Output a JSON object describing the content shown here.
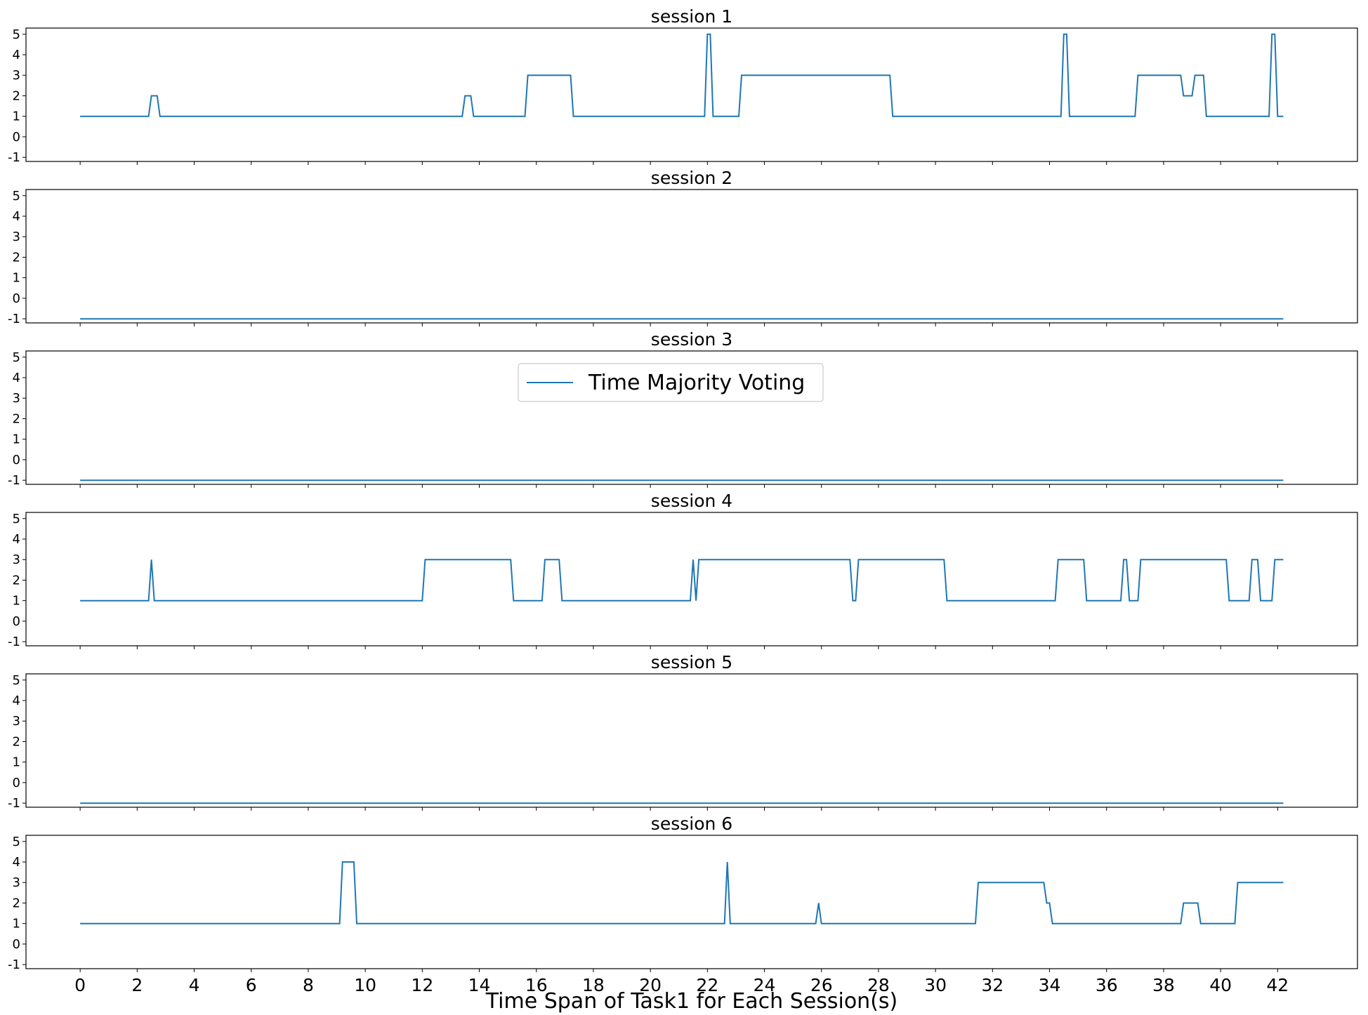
{
  "chart_data": {
    "type": "line",
    "xlabel": "Time Span of Task1 for Each Session(s)",
    "ylabel": "",
    "xlim": [
      -1.9,
      44.8
    ],
    "ylim": [
      -1.2,
      5.3
    ],
    "xticks": [
      "0",
      "2",
      "4",
      "6",
      "8",
      "10",
      "12",
      "14",
      "16",
      "18",
      "20",
      "22",
      "24",
      "26",
      "28",
      "30",
      "32",
      "34",
      "36",
      "38",
      "40",
      "42"
    ],
    "yticks": [
      "-1",
      "0",
      "1",
      "2",
      "3",
      "4",
      "5"
    ],
    "grid": false,
    "legend": {
      "entries": [
        "Time Majority Voting"
      ],
      "placement": "upper-center (in session 3 panel)"
    },
    "series_color": "#1f77b4",
    "panels": [
      {
        "title": "session 1",
        "series": [
          {
            "name": "Time Majority Voting",
            "points": [
              [
                0,
                1
              ],
              [
                2.4,
                1
              ],
              [
                2.5,
                2
              ],
              [
                2.7,
                2
              ],
              [
                2.8,
                1
              ],
              [
                13.4,
                1
              ],
              [
                13.5,
                2
              ],
              [
                13.7,
                2
              ],
              [
                13.8,
                1
              ],
              [
                15.6,
                1
              ],
              [
                15.7,
                3
              ],
              [
                17.2,
                3
              ],
              [
                17.3,
                1
              ],
              [
                21.9,
                1
              ],
              [
                22.0,
                5
              ],
              [
                22.1,
                5
              ],
              [
                22.2,
                1
              ],
              [
                23.1,
                1
              ],
              [
                23.2,
                3
              ],
              [
                28.4,
                3
              ],
              [
                28.5,
                1
              ],
              [
                34.4,
                1
              ],
              [
                34.5,
                5
              ],
              [
                34.6,
                5
              ],
              [
                34.7,
                1
              ],
              [
                37.0,
                1
              ],
              [
                37.1,
                3
              ],
              [
                38.6,
                3
              ],
              [
                38.7,
                2
              ],
              [
                39.0,
                2
              ],
              [
                39.1,
                3
              ],
              [
                39.4,
                3
              ],
              [
                39.5,
                1
              ],
              [
                41.7,
                1
              ],
              [
                41.8,
                5
              ],
              [
                41.9,
                5
              ],
              [
                42.0,
                1
              ],
              [
                42.2,
                1
              ]
            ]
          }
        ]
      },
      {
        "title": "session 2",
        "series": [
          {
            "name": "Time Majority Voting",
            "points": [
              [
                0,
                -1
              ],
              [
                42.2,
                -1
              ]
            ]
          }
        ]
      },
      {
        "title": "session 3",
        "series": [
          {
            "name": "Time Majority Voting",
            "points": [
              [
                0,
                -1
              ],
              [
                42.2,
                -1
              ]
            ]
          }
        ]
      },
      {
        "title": "session 4",
        "series": [
          {
            "name": "Time Majority Voting",
            "points": [
              [
                0,
                1
              ],
              [
                2.4,
                1
              ],
              [
                2.5,
                3
              ],
              [
                2.6,
                1
              ],
              [
                12.0,
                1
              ],
              [
                12.1,
                3
              ],
              [
                15.1,
                3
              ],
              [
                15.2,
                1
              ],
              [
                16.2,
                1
              ],
              [
                16.3,
                3
              ],
              [
                16.8,
                3
              ],
              [
                16.9,
                1
              ],
              [
                21.4,
                1
              ],
              [
                21.5,
                3
              ],
              [
                21.6,
                1
              ],
              [
                21.7,
                3
              ],
              [
                27.0,
                3
              ],
              [
                27.1,
                1
              ],
              [
                27.2,
                1
              ],
              [
                27.3,
                3
              ],
              [
                30.3,
                3
              ],
              [
                30.4,
                1
              ],
              [
                34.2,
                1
              ],
              [
                34.3,
                3
              ],
              [
                35.2,
                3
              ],
              [
                35.3,
                1
              ],
              [
                36.5,
                1
              ],
              [
                36.6,
                3
              ],
              [
                36.7,
                3
              ],
              [
                36.8,
                1
              ],
              [
                37.1,
                1
              ],
              [
                37.2,
                3
              ],
              [
                40.2,
                3
              ],
              [
                40.3,
                1
              ],
              [
                41.0,
                1
              ],
              [
                41.1,
                3
              ],
              [
                41.3,
                3
              ],
              [
                41.4,
                1
              ],
              [
                41.8,
                1
              ],
              [
                41.9,
                3
              ],
              [
                42.2,
                3
              ]
            ]
          }
        ]
      },
      {
        "title": "session 5",
        "series": [
          {
            "name": "Time Majority Voting",
            "points": [
              [
                0,
                -1
              ],
              [
                42.2,
                -1
              ]
            ]
          }
        ]
      },
      {
        "title": "session 6",
        "series": [
          {
            "name": "Time Majority Voting",
            "points": [
              [
                0,
                1
              ],
              [
                9.1,
                1
              ],
              [
                9.2,
                4
              ],
              [
                9.6,
                4
              ],
              [
                9.7,
                1
              ],
              [
                22.6,
                1
              ],
              [
                22.7,
                4
              ],
              [
                22.8,
                1
              ],
              [
                25.8,
                1
              ],
              [
                25.9,
                2
              ],
              [
                26.0,
                1
              ],
              [
                31.4,
                1
              ],
              [
                31.5,
                3
              ],
              [
                33.8,
                3
              ],
              [
                33.9,
                2
              ],
              [
                34.0,
                2
              ],
              [
                34.1,
                1
              ],
              [
                38.6,
                1
              ],
              [
                38.7,
                2
              ],
              [
                39.2,
                2
              ],
              [
                39.3,
                1
              ],
              [
                40.5,
                1
              ],
              [
                40.6,
                3
              ],
              [
                42.2,
                3
              ]
            ]
          }
        ]
      }
    ]
  }
}
